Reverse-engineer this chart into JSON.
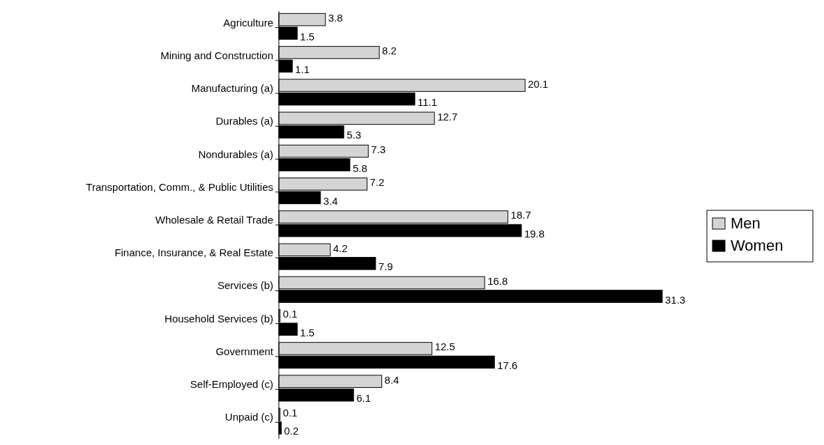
{
  "chart_data": {
    "type": "bar",
    "orientation": "horizontal",
    "categories": [
      "Agriculture",
      "Mining and Construction",
      "Manufacturing (a)",
      "Durables (a)",
      "Nondurables (a)",
      "Transportation, Comm., & Public Utilities",
      "Wholesale & Retail Trade",
      "Finance, Insurance, & Real Estate",
      "Services (b)",
      "Household Services (b)",
      "Government",
      "Self-Employed (c)",
      "Unpaid (c)"
    ],
    "series": [
      {
        "name": "Men",
        "color": "#d4d4d4",
        "values": [
          3.8,
          8.2,
          20.1,
          12.7,
          7.3,
          7.2,
          18.7,
          4.2,
          16.8,
          0.1,
          12.5,
          8.4,
          0.1
        ]
      },
      {
        "name": "Women",
        "color": "#000000",
        "values": [
          1.5,
          1.1,
          11.1,
          5.3,
          5.8,
          3.4,
          19.8,
          7.9,
          31.3,
          1.5,
          17.6,
          6.1,
          0.2
        ]
      }
    ],
    "data_labels": true,
    "legend": "right"
  }
}
